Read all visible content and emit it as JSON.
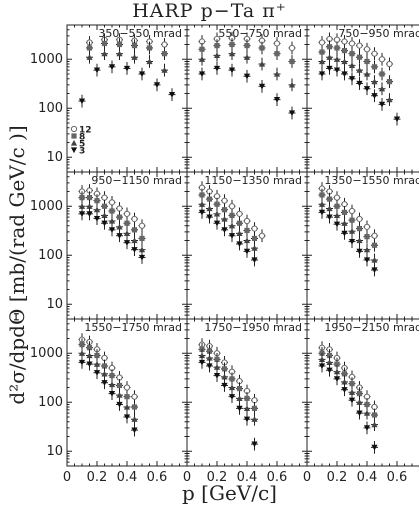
{
  "title": "HARP p−Ta π⁺",
  "ylabel": "d²σ/dpdΘ [mb/(rad GeV/c )]",
  "xlabel": "p [GeV/c]",
  "colors": {
    "axis": "#222222",
    "marker": "#111111",
    "marker_light": "#666666"
  },
  "chart_data": {
    "type": "scatter",
    "xlim": [
      0,
      0.8
    ],
    "ylim": [
      5,
      5000
    ],
    "yscale": "log",
    "x_ticks": [
      0,
      0.2,
      0.4,
      0.6
    ],
    "x_tick_labels": [
      "0",
      "0.2",
      "0.4",
      "0.6"
    ],
    "y_ticks": [
      10,
      100,
      1000
    ],
    "y_tick_labels": [
      "10",
      "100",
      "1000"
    ],
    "grid": false,
    "legend": {
      "placement": "left",
      "entries": [
        "12",
        "8",
        "5",
        "3"
      ],
      "markers": [
        "circle-open",
        "square",
        "triangle",
        "triangle-down"
      ]
    },
    "panels": [
      {
        "label": "350−550 mrad",
        "series": [
          {
            "name": "12",
            "x": [
              0.15,
              0.25,
              0.35,
              0.45,
              0.55,
              0.65
            ],
            "y": [
              2200,
              2500,
              2500,
              2400,
              2300,
              2000
            ]
          },
          {
            "name": "8",
            "x": [
              0.15,
              0.25,
              0.35,
              0.45,
              0.55,
              0.65
            ],
            "y": [
              1700,
              2100,
              2000,
              1900,
              1700,
              1300
            ]
          },
          {
            "name": "5",
            "x": [
              0.15,
              0.25,
              0.35,
              0.45,
              0.55,
              0.65
            ],
            "y": [
              1100,
              1300,
              1300,
              1100,
              900,
              600
            ]
          },
          {
            "name": "3",
            "x": [
              0.1,
              0.2,
              0.3,
              0.4,
              0.5,
              0.6,
              0.7
            ],
            "y": [
              140,
              600,
              700,
              650,
              500,
              300,
              190
            ]
          }
        ]
      },
      {
        "label": "550−750 mrad",
        "series": [
          {
            "name": "12",
            "x": [
              0.1,
              0.2,
              0.3,
              0.4,
              0.5,
              0.6,
              0.7
            ],
            "y": [
              2300,
              2600,
              2700,
              2600,
              2400,
              2100,
              1700
            ]
          },
          {
            "name": "8",
            "x": [
              0.1,
              0.2,
              0.3,
              0.4,
              0.5,
              0.6,
              0.7
            ],
            "y": [
              1600,
              1900,
              2000,
              1900,
              1700,
              1300,
              900
            ]
          },
          {
            "name": "5",
            "x": [
              0.1,
              0.2,
              0.3,
              0.4,
              0.5,
              0.6,
              0.7
            ],
            "y": [
              1000,
              1200,
              1300,
              1100,
              800,
              500,
              300
            ]
          },
          {
            "name": "3",
            "x": [
              0.1,
              0.2,
              0.3,
              0.4,
              0.5,
              0.6,
              0.7
            ],
            "y": [
              500,
              650,
              600,
              450,
              280,
              150,
              80
            ]
          }
        ]
      },
      {
        "label": "750−950 mrad",
        "series": [
          {
            "name": "12",
            "x": [
              0.1,
              0.15,
              0.2,
              0.25,
              0.3,
              0.35,
              0.4,
              0.45,
              0.5,
              0.55
            ],
            "y": [
              2200,
              2600,
              2500,
              2300,
              2100,
              1900,
              1600,
              1300,
              1000,
              800
            ]
          },
          {
            "name": "8",
            "x": [
              0.1,
              0.15,
              0.2,
              0.25,
              0.3,
              0.35,
              0.4,
              0.45,
              0.5,
              0.55
            ],
            "y": [
              1400,
              1800,
              1700,
              1500,
              1300,
              1100,
              900,
              700,
              500,
              350
            ]
          },
          {
            "name": "5",
            "x": [
              0.1,
              0.15,
              0.2,
              0.25,
              0.3,
              0.35,
              0.4,
              0.45,
              0.5,
              0.55
            ],
            "y": [
              900,
              1100,
              1000,
              900,
              750,
              600,
              500,
              350,
              250,
              150
            ]
          },
          {
            "name": "3",
            "x": [
              0.1,
              0.15,
              0.2,
              0.25,
              0.3,
              0.35,
              0.4,
              0.45,
              0.5,
              0.6
            ],
            "y": [
              500,
              650,
              600,
              500,
              400,
              320,
              250,
              180,
              120,
              60
            ]
          }
        ]
      },
      {
        "label": "950−1150 mrad",
        "series": [
          {
            "name": "12",
            "x": [
              0.1,
              0.15,
              0.2,
              0.25,
              0.3,
              0.35,
              0.4,
              0.45,
              0.5
            ],
            "y": [
              2000,
              2100,
              1800,
              1500,
              1200,
              900,
              700,
              550,
              400
            ]
          },
          {
            "name": "8",
            "x": [
              0.1,
              0.15,
              0.2,
              0.25,
              0.3,
              0.35,
              0.4,
              0.45,
              0.5
            ],
            "y": [
              1500,
              1500,
              1300,
              1000,
              800,
              600,
              450,
              330,
              220
            ]
          },
          {
            "name": "5",
            "x": [
              0.1,
              0.15,
              0.2,
              0.25,
              0.3,
              0.35,
              0.4,
              0.45,
              0.5
            ],
            "y": [
              1000,
              1000,
              850,
              650,
              500,
              380,
              280,
              200,
              130
            ]
          },
          {
            "name": "3",
            "x": [
              0.1,
              0.15,
              0.2,
              0.25,
              0.3,
              0.35,
              0.4,
              0.45,
              0.5
            ],
            "y": [
              700,
              700,
              560,
              450,
              330,
              250,
              180,
              130,
              90
            ]
          }
        ]
      },
      {
        "label": "1150−1350 mrad",
        "series": [
          {
            "name": "12",
            "x": [
              0.1,
              0.15,
              0.2,
              0.25,
              0.3,
              0.35,
              0.4,
              0.45,
              0.5
            ],
            "y": [
              2400,
              2000,
              1600,
              1300,
              1000,
              700,
              500,
              350,
              250
            ]
          },
          {
            "name": "8",
            "x": [
              0.1,
              0.15,
              0.2,
              0.25,
              0.3,
              0.35,
              0.4,
              0.45
            ],
            "y": [
              1700,
              1400,
              1100,
              850,
              650,
              450,
              320,
              220
            ]
          },
          {
            "name": "5",
            "x": [
              0.1,
              0.15,
              0.2,
              0.25,
              0.3,
              0.35,
              0.4,
              0.45
            ],
            "y": [
              1100,
              900,
              700,
              550,
              400,
              280,
              200,
              140
            ]
          },
          {
            "name": "3",
            "x": [
              0.1,
              0.15,
              0.2,
              0.25,
              0.3,
              0.35,
              0.4,
              0.45
            ],
            "y": [
              750,
              600,
              450,
              330,
              250,
              170,
              120,
              80
            ]
          }
        ]
      },
      {
        "label": "1350−1550 mrad",
        "series": [
          {
            "name": "12",
            "x": [
              0.1,
              0.15,
              0.2,
              0.25,
              0.3,
              0.35,
              0.4,
              0.45
            ],
            "y": [
              2300,
              2000,
              1500,
              1100,
              800,
              550,
              380,
              250
            ]
          },
          {
            "name": "8",
            "x": [
              0.1,
              0.15,
              0.2,
              0.25,
              0.3,
              0.35,
              0.4,
              0.45
            ],
            "y": [
              1700,
              1400,
              1000,
              750,
              520,
              350,
              240,
              160
            ]
          },
          {
            "name": "5",
            "x": [
              0.1,
              0.15,
              0.2,
              0.25,
              0.3,
              0.35,
              0.4,
              0.45
            ],
            "y": [
              1100,
              900,
              650,
              450,
              310,
              200,
              130,
              80
            ]
          },
          {
            "name": "3",
            "x": [
              0.1,
              0.15,
              0.2,
              0.25,
              0.3,
              0.35,
              0.4,
              0.45
            ],
            "y": [
              750,
              600,
              430,
              280,
              190,
              120,
              80,
              50
            ]
          }
        ]
      },
      {
        "label": "1550−1750 mrad",
        "series": [
          {
            "name": "12",
            "x": [
              0.1,
              0.15,
              0.2,
              0.25,
              0.3,
              0.35,
              0.4,
              0.45
            ],
            "y": [
              1900,
              1700,
              1200,
              800,
              500,
              320,
              200,
              130
            ]
          },
          {
            "name": "8",
            "x": [
              0.1,
              0.15,
              0.2,
              0.25,
              0.3,
              0.35,
              0.4,
              0.45
            ],
            "y": [
              1500,
              1300,
              900,
              550,
              350,
              220,
              130,
              80
            ]
          },
          {
            "name": "5",
            "x": [
              0.1,
              0.15,
              0.2,
              0.25,
              0.3,
              0.35,
              0.4,
              0.45
            ],
            "y": [
              1000,
              900,
              600,
              380,
              230,
              140,
              80,
              45
            ]
          },
          {
            "name": "3",
            "x": [
              0.1,
              0.15,
              0.2,
              0.25,
              0.3,
              0.35,
              0.4,
              0.45
            ],
            "y": [
              650,
              600,
              400,
              250,
              150,
              90,
              50,
              27
            ]
          }
        ]
      },
      {
        "label": "1750−1950 mrad",
        "series": [
          {
            "name": "12",
            "x": [
              0.1,
              0.15,
              0.2,
              0.25,
              0.3,
              0.35,
              0.4,
              0.45
            ],
            "y": [
              1500,
              1400,
              1000,
              650,
              420,
              270,
              170,
              110
            ]
          },
          {
            "name": "8",
            "x": [
              0.1,
              0.15,
              0.2,
              0.25,
              0.3,
              0.35,
              0.4,
              0.45
            ],
            "y": [
              1200,
              1100,
              750,
              480,
              300,
              190,
              120,
              75
            ]
          },
          {
            "name": "5",
            "x": [
              0.1,
              0.15,
              0.2,
              0.25,
              0.3,
              0.35,
              0.4,
              0.45
            ],
            "y": [
              900,
              800,
              520,
              330,
              200,
              120,
              75,
              45
            ]
          },
          {
            "name": "3",
            "x": [
              0.1,
              0.15,
              0.2,
              0.25,
              0.3,
              0.35,
              0.4,
              0.45
            ],
            "y": [
              650,
              550,
              350,
              220,
              130,
              75,
              45,
              14
            ]
          }
        ]
      },
      {
        "label": "1950−2150 mrad",
        "series": [
          {
            "name": "12",
            "x": [
              0.1,
              0.15,
              0.2,
              0.25,
              0.3,
              0.35,
              0.4,
              0.45
            ],
            "y": [
              1300,
              1200,
              800,
              500,
              330,
              200,
              130,
              80
            ]
          },
          {
            "name": "8",
            "x": [
              0.1,
              0.15,
              0.2,
              0.25,
              0.3,
              0.35,
              0.4,
              0.45
            ],
            "y": [
              1000,
              900,
              600,
              380,
              240,
              150,
              90,
              55
            ]
          },
          {
            "name": "5",
            "x": [
              0.1,
              0.15,
              0.2,
              0.25,
              0.3,
              0.35,
              0.4,
              0.45
            ],
            "y": [
              750,
              650,
              420,
              260,
              160,
              100,
              60,
              35
            ]
          },
          {
            "name": "3",
            "x": [
              0.1,
              0.15,
              0.2,
              0.25,
              0.3,
              0.35,
              0.4,
              0.45
            ],
            "y": [
              550,
              450,
              300,
              180,
              110,
              60,
              30,
              12
            ]
          }
        ]
      }
    ]
  }
}
